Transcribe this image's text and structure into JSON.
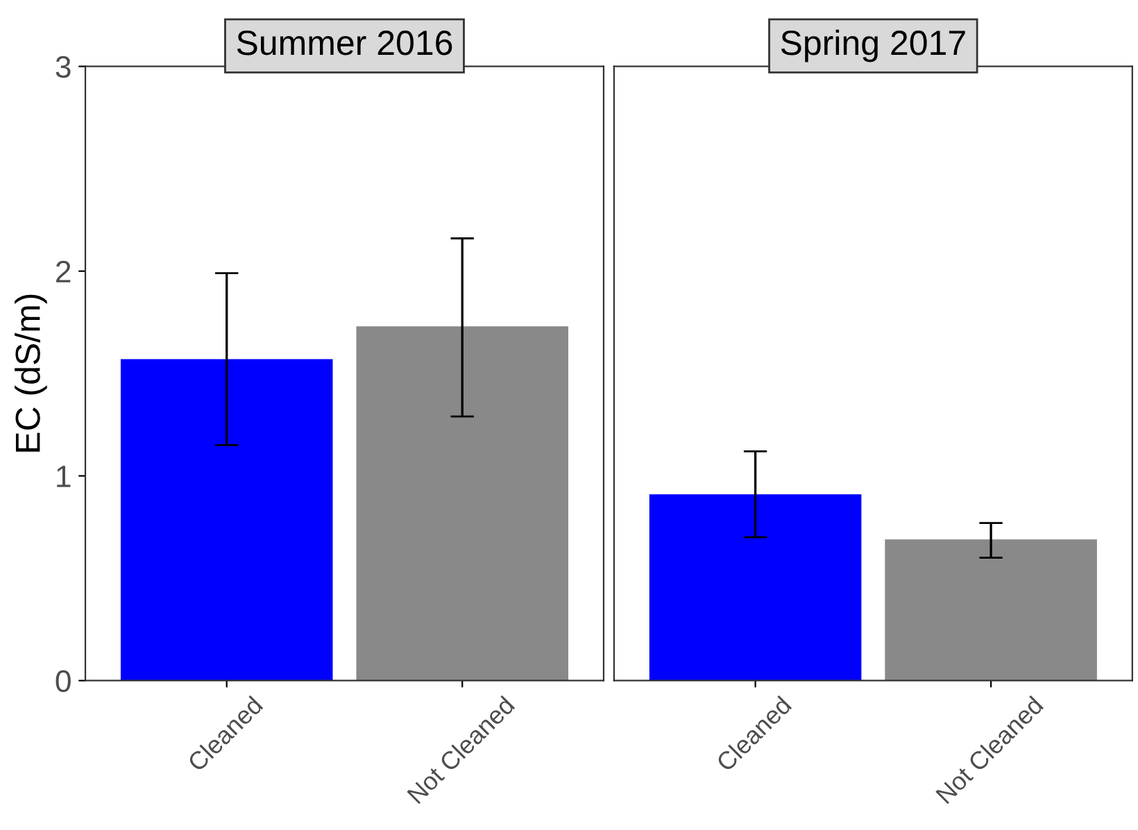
{
  "chart_data": [
    {
      "type": "bar",
      "title": "Summer 2016",
      "ylabel": "EC (dS/m)",
      "categories": [
        "Cleaned",
        "Not Cleaned"
      ],
      "values": [
        1.57,
        1.73
      ],
      "colors": [
        "#0000ff",
        "#898989"
      ],
      "errors": [
        [
          1.15,
          1.99
        ],
        [
          1.29,
          2.16
        ]
      ],
      "ylim": [
        0,
        3
      ],
      "yticks": [
        0,
        1,
        2,
        3
      ],
      "grid": false,
      "legend": false
    },
    {
      "type": "bar",
      "title": "Spring 2017",
      "categories": [
        "Cleaned",
        "Not Cleaned"
      ],
      "values": [
        0.91,
        0.69
      ],
      "colors": [
        "#0000ff",
        "#898989"
      ],
      "errors": [
        [
          0.7,
          1.12
        ],
        [
          0.6,
          0.77
        ]
      ],
      "ylim": [
        0,
        3
      ],
      "yticks": [
        0,
        1,
        2,
        3
      ],
      "tick_labels": "x",
      "grid": false,
      "legend": false
    }
  ]
}
